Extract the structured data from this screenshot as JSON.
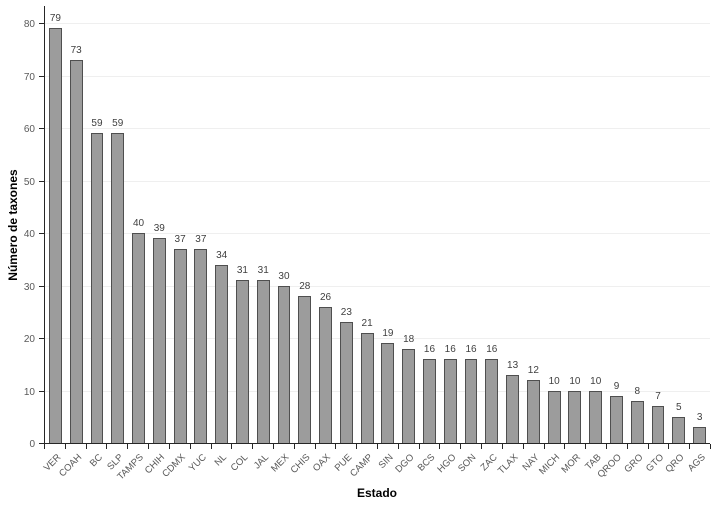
{
  "chart_data": {
    "type": "bar",
    "title": "",
    "xlabel": "Estado",
    "ylabel": "Número de taxones",
    "categories": [
      "VER",
      "COAH",
      "BC",
      "SLP",
      "TAMPS",
      "CHIH",
      "CDMX",
      "YUC",
      "NL",
      "COL",
      "JAL",
      "MEX",
      "CHIS",
      "OAX",
      "PUE",
      "CAMP",
      "SIN",
      "DGO",
      "BCS",
      "HGO",
      "SON",
      "ZAC",
      "TLAX",
      "NAY",
      "MICH",
      "MOR",
      "TAB",
      "QROO",
      "GRO",
      "GTO",
      "QRO",
      "AGS"
    ],
    "values": [
      79,
      73,
      59,
      59,
      40,
      39,
      37,
      37,
      34,
      31,
      31,
      30,
      28,
      26,
      23,
      21,
      19,
      18,
      16,
      16,
      16,
      16,
      13,
      12,
      10,
      10,
      10,
      9,
      8,
      7,
      5,
      3
    ],
    "ylim": [
      0,
      80
    ],
    "yticks": [
      0,
      10,
      20,
      30,
      40,
      50,
      60,
      70,
      80
    ],
    "grid": "horizontal",
    "legend": "none",
    "value_labels": true,
    "colors": {
      "bar_fill": "#9c9c9c",
      "bar_border": "#4f4f4f",
      "gridline": "#efefef",
      "axis": "#262626",
      "tick_label": "#595959",
      "value_label": "#3f3f3f",
      "background": "#ffffff"
    }
  }
}
